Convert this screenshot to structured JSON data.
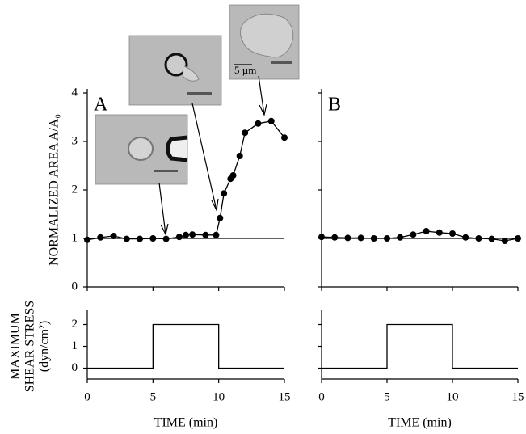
{
  "chart_data": [
    {
      "type": "line",
      "markers": true,
      "annotation": "A",
      "scale_bar": "5 µm",
      "ylabel": "NORMALIZED AREA A/A₀",
      "reference_line": 1,
      "x": [
        0,
        1,
        2,
        3,
        4,
        5,
        6,
        7,
        7.5,
        8,
        9,
        9.8,
        10.1,
        10.4,
        10.9,
        11.1,
        11.6,
        12,
        13,
        14,
        15
      ],
      "series": [
        {
          "color": "#000000",
          "values": [
            0.97,
            1.02,
            1.05,
            0.99,
            0.99,
            1.0,
            0.99,
            1.03,
            1.07,
            1.08,
            1.07,
            1.07,
            1.42,
            1.93,
            2.23,
            2.3,
            2.7,
            3.18,
            3.37,
            3.42,
            3.08
          ]
        }
      ],
      "xlim": [
        0,
        15
      ],
      "xticks": [
        0,
        5,
        10,
        15
      ],
      "ylim": [
        0,
        4
      ],
      "yticks": [
        0,
        1,
        2,
        3,
        4
      ]
    },
    {
      "type": "line",
      "markers": true,
      "annotation": "B",
      "reference_line": 1,
      "x": [
        0,
        1,
        2,
        3,
        4,
        5,
        6,
        7,
        8,
        9,
        10,
        11,
        12,
        13,
        14,
        15
      ],
      "series": [
        {
          "color": "#000000",
          "values": [
            1.03,
            1.02,
            1.01,
            1.01,
            1.0,
            1.0,
            1.02,
            1.08,
            1.15,
            1.12,
            1.1,
            1.02,
            1.0,
            0.99,
            0.95,
            1.0
          ]
        }
      ],
      "xlim": [
        0,
        15
      ],
      "xticks": [
        0,
        5,
        10,
        15
      ],
      "ylim": [
        0,
        4
      ],
      "yticks": [
        0,
        1,
        2,
        3,
        4
      ]
    },
    {
      "type": "line",
      "markers": false,
      "ylabel": [
        "MAXIMUM",
        "SHEAR STRESS",
        "(dyn/cm²)"
      ],
      "xlabel": "TIME (min)",
      "x": [
        0,
        5,
        5,
        10,
        10,
        15
      ],
      "series": [
        {
          "color": "#000000",
          "values": [
            0,
            0,
            2,
            2,
            0,
            0
          ]
        }
      ],
      "xlim": [
        0,
        15
      ],
      "xticks": [
        0,
        5,
        10,
        15
      ],
      "ylim": [
        -0.5,
        2.5
      ],
      "yticks": [
        0,
        1,
        2
      ]
    },
    {
      "type": "line",
      "markers": false,
      "xlabel": "TIME (min)",
      "x": [
        0,
        5,
        5,
        10,
        10,
        15
      ],
      "series": [
        {
          "color": "#000000",
          "values": [
            0,
            0,
            2,
            2,
            0,
            0
          ]
        }
      ],
      "xlim": [
        0,
        15
      ],
      "xticks": [
        0,
        5,
        10,
        15
      ],
      "ylim": [
        -0.5,
        2.5
      ],
      "yticks": [
        0,
        1,
        2
      ]
    }
  ]
}
